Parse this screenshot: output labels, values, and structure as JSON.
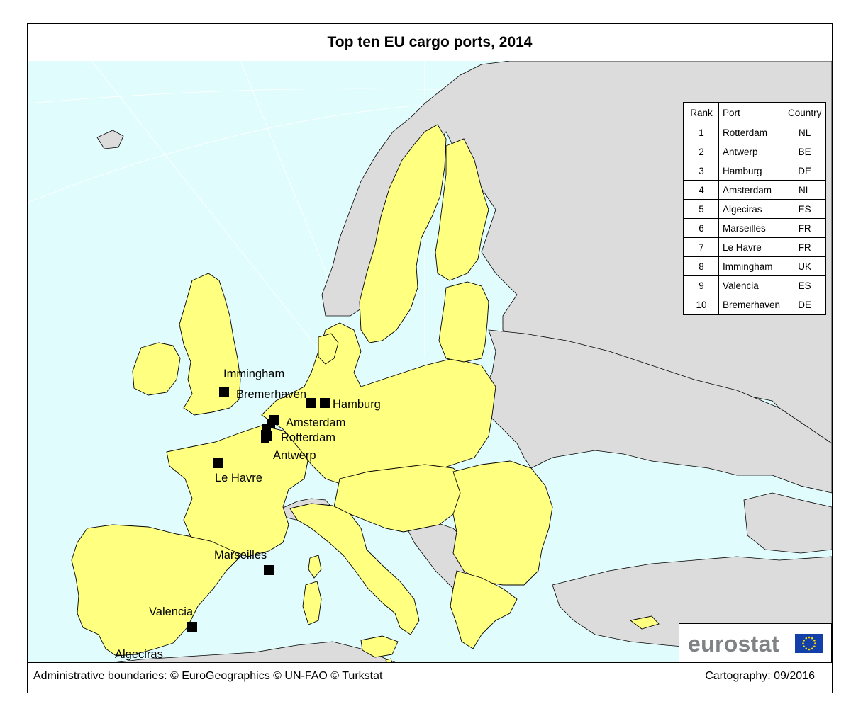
{
  "title": "Top ten EU cargo ports, 2014",
  "colors": {
    "sea": "#e0fcfc",
    "eu_land": "#ffff80",
    "non_eu_land": "#dcdcdc",
    "border": "#000000",
    "marker": "#000000",
    "eurostat_text": "#7f8386",
    "eu_flag_blue": "#1340a8",
    "eu_flag_stars": "#ffdd00"
  },
  "table": {
    "headers": [
      "Rank",
      "Port",
      "Country"
    ],
    "rows": [
      {
        "rank": "1",
        "port": "Rotterdam",
        "country": "NL"
      },
      {
        "rank": "2",
        "port": "Antwerp",
        "country": "BE"
      },
      {
        "rank": "3",
        "port": "Hamburg",
        "country": "DE"
      },
      {
        "rank": "4",
        "port": "Amsterdam",
        "country": "NL"
      },
      {
        "rank": "5",
        "port": "Algeciras",
        "country": "ES"
      },
      {
        "rank": "6",
        "port": "Marseilles",
        "country": "FR"
      },
      {
        "rank": "7",
        "port": "Le Havre",
        "country": "FR"
      },
      {
        "rank": "8",
        "port": "Immingham",
        "country": "UK"
      },
      {
        "rank": "9",
        "port": "Valencia",
        "country": "ES"
      },
      {
        "rank": "10",
        "port": "Bremerhaven",
        "country": "DE"
      }
    ]
  },
  "ports": [
    {
      "name": "Immingham"
    },
    {
      "name": "Bremerhaven"
    },
    {
      "name": "Hamburg"
    },
    {
      "name": "Amsterdam"
    },
    {
      "name": "Rotterdam"
    },
    {
      "name": "Antwerp"
    },
    {
      "name": "Le Havre"
    },
    {
      "name": "Marseilles"
    },
    {
      "name": "Valencia"
    },
    {
      "name": "Algeciras"
    }
  ],
  "footer": {
    "left": "Administrative boundaries: © EuroGeographics © UN-FAO © Turkstat",
    "right": "Cartography: 09/2016"
  },
  "logo": {
    "text": "eurostat",
    "flag_icon": "eu-flag-icon"
  }
}
